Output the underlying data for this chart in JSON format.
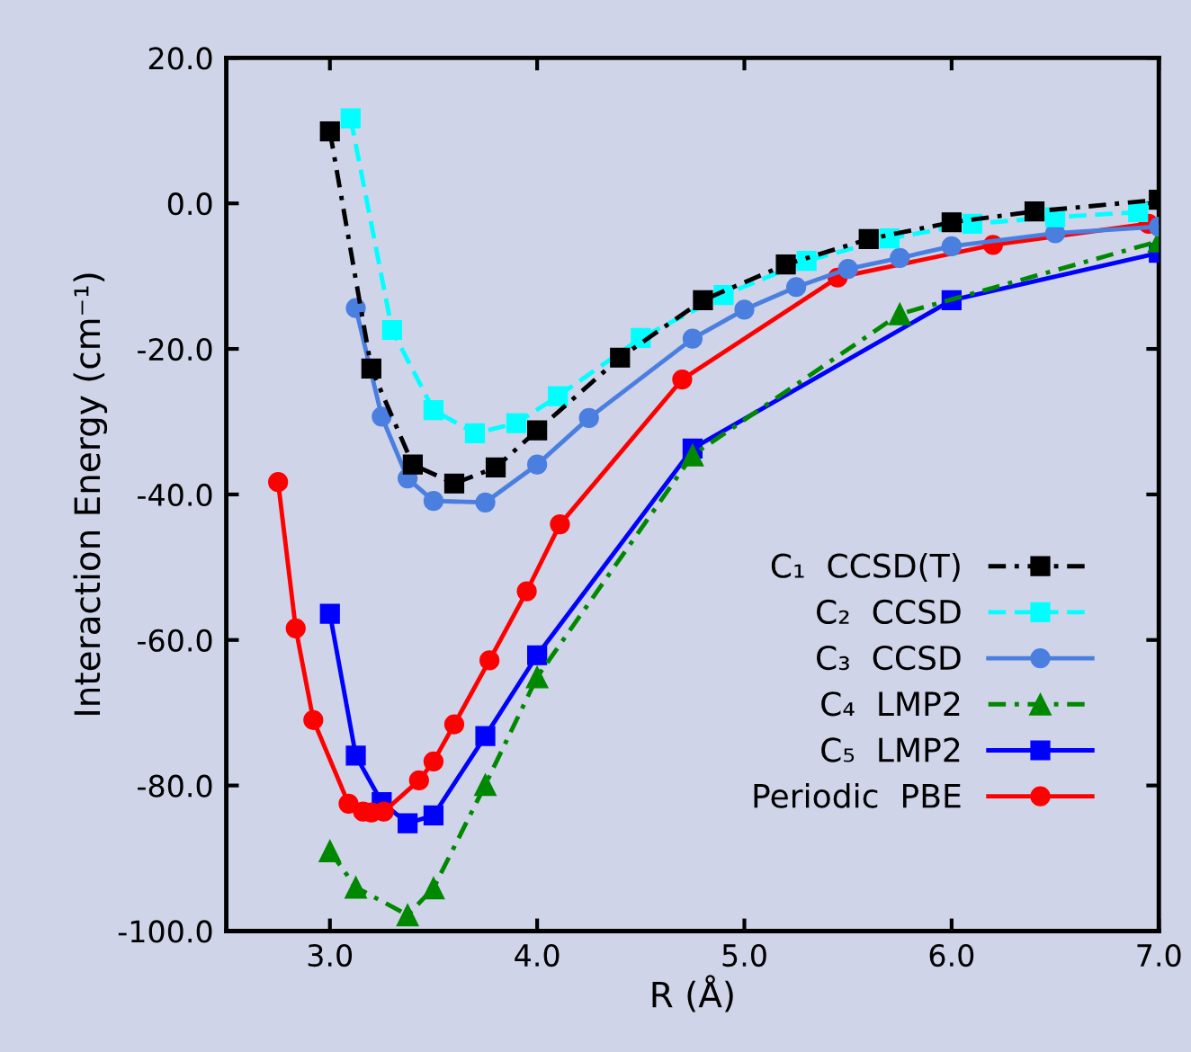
{
  "chart_data": {
    "type": "line",
    "xlabel": "R (Å)",
    "ylabel": "Interaction Energy (cm⁻¹)",
    "xlim": [
      2.5,
      7.0
    ],
    "ylim": [
      -100,
      20
    ],
    "xticks": [
      {
        "value": 3,
        "label": "3.0"
      },
      {
        "value": 4,
        "label": "4.0"
      },
      {
        "value": 5,
        "label": "5.0"
      },
      {
        "value": 6,
        "label": "6.0"
      },
      {
        "value": 7,
        "label": "7.0"
      }
    ],
    "yticks": [
      {
        "value": -100,
        "label": "-100.0"
      },
      {
        "value": -80,
        "label": "-80.0"
      },
      {
        "value": -60,
        "label": "-60.0"
      },
      {
        "value": -40,
        "label": "-40.0"
      },
      {
        "value": -20,
        "label": "-20.0"
      },
      {
        "value": 0,
        "label": "0.0"
      },
      {
        "value": 20,
        "label": "20.0"
      }
    ],
    "grid": false,
    "legend": "bottom right",
    "series": [
      {
        "name": "C₁  CCSD(T)",
        "color": "#000000",
        "marker": "square",
        "line_style": "dashdot",
        "x": [
          3.0,
          3.2,
          3.4,
          3.6,
          3.8,
          4.0,
          4.4,
          4.8,
          5.2,
          5.6,
          6.0,
          6.4,
          7.0
        ],
        "values": [
          9.9,
          -22.7,
          -35.9,
          -38.5,
          -36.3,
          -31.2,
          -21.2,
          -13.3,
          -8.4,
          -4.9,
          -2.6,
          -1.1,
          0.5
        ]
      },
      {
        "name": "C₂  CCSD",
        "color": "#00ffff",
        "marker": "square",
        "line_style": "dashed",
        "x": [
          3.1,
          3.3,
          3.5,
          3.7,
          3.9,
          4.1,
          4.5,
          4.9,
          5.3,
          5.7,
          6.1,
          6.5,
          6.9
        ],
        "values": [
          11.7,
          -17.4,
          -28.4,
          -31.6,
          -30.2,
          -26.5,
          -18.5,
          -12.6,
          -7.9,
          -4.8,
          -2.8,
          -1.9,
          -1.2
        ]
      },
      {
        "name": "C₃  CCSD",
        "color": "#4a7fe0",
        "marker": "circle",
        "line_style": "solid",
        "x": [
          3.125,
          3.25,
          3.375,
          3.5,
          3.75,
          4.0,
          4.25,
          4.75,
          5.0,
          5.25,
          5.5,
          5.75,
          6.0,
          6.5,
          7.0
        ],
        "values": [
          -14.4,
          -29.3,
          -37.8,
          -40.9,
          -41.1,
          -35.9,
          -29.5,
          -18.6,
          -14.6,
          -11.5,
          -9.0,
          -7.5,
          -5.9,
          -4.1,
          -3.2
        ]
      },
      {
        "name": "C₄  LMP2",
        "color": "#008800",
        "marker": "triangle",
        "line_style": "dashdot",
        "x": [
          3.0,
          3.125,
          3.375,
          3.5,
          3.75,
          4.0,
          4.75,
          5.75,
          7.0
        ],
        "values": [
          -89.0,
          -94.0,
          -97.8,
          -94.1,
          -79.9,
          -65.1,
          -34.6,
          -15.2,
          -5.2
        ]
      },
      {
        "name": "C₅  LMP2",
        "color": "#0000ff",
        "marker": "square",
        "line_style": "solid",
        "x": [
          3.0,
          3.125,
          3.25,
          3.375,
          3.5,
          3.75,
          4.0,
          4.75,
          6.0,
          7.0
        ],
        "values": [
          -56.4,
          -75.9,
          -82.3,
          -85.2,
          -84.1,
          -73.2,
          -62.1,
          -33.7,
          -13.3,
          -6.8
        ]
      },
      {
        "name": "Periodic  PBE",
        "color": "#ff0000",
        "marker": "circle",
        "line_style": "solid",
        "x": [
          2.75,
          2.835,
          2.92,
          3.09,
          3.16,
          3.2,
          3.26,
          3.43,
          3.5,
          3.6,
          3.77,
          3.95,
          4.11,
          4.7,
          5.45,
          6.2,
          6.95
        ],
        "values": [
          -38.3,
          -58.4,
          -71.0,
          -82.5,
          -83.6,
          -83.7,
          -83.6,
          -79.3,
          -76.7,
          -71.6,
          -62.8,
          -53.3,
          -44.1,
          -24.2,
          -10.2,
          -5.7,
          -2.8
        ]
      }
    ]
  }
}
